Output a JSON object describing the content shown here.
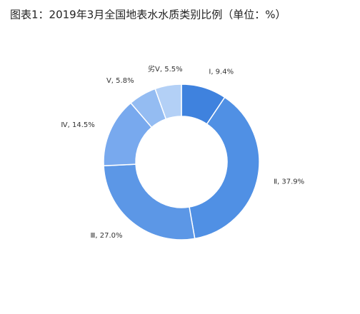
{
  "chart_data": {
    "type": "donut",
    "title": "图表1：2019年3月全国地表水水质类别比例（单位：%）",
    "values": [
      9.4,
      37.9,
      27.0,
      14.5,
      5.8,
      5.5
    ],
    "value_labels": [
      "Ⅰ, 9.4%",
      "Ⅱ, 37.9%",
      "Ⅲ, 27.0%",
      "Ⅳ, 14.5%",
      "Ⅴ, 5.8%",
      "劣Ⅴ, 5.5%"
    ],
    "colors": [
      "#3f82de",
      "#5090e4",
      "#5c97e6",
      "#78a9ee",
      "#94bcf2",
      "#b3d0f6"
    ]
  }
}
